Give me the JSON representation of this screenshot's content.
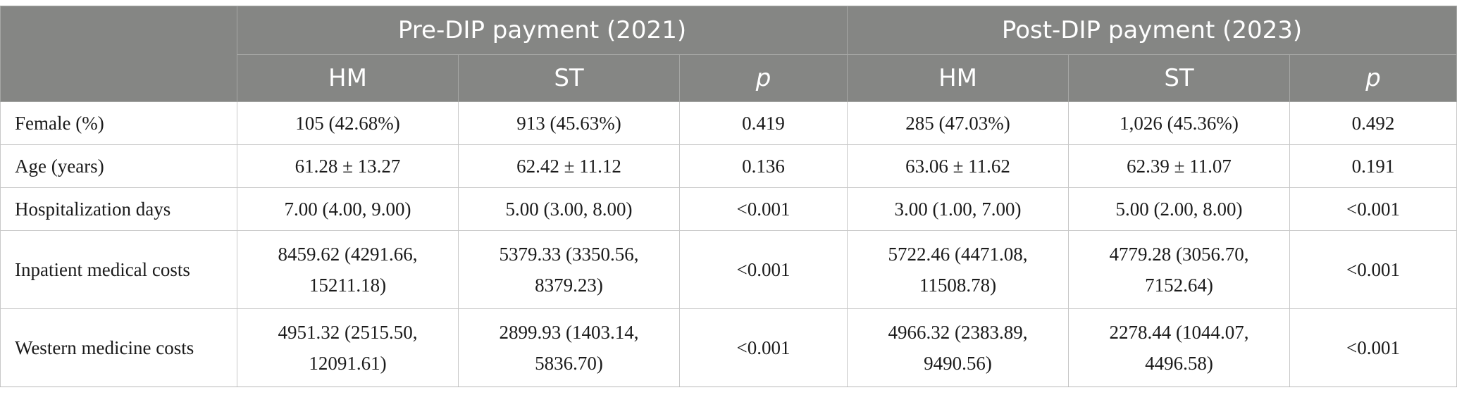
{
  "table": {
    "groups": [
      "Pre-DIP payment (2021)",
      "Post-DIP payment (2023)"
    ],
    "subheaders": [
      "HM",
      "ST",
      "p",
      "HM",
      "ST",
      "p"
    ],
    "rows": [
      {
        "label": "Female (%)",
        "cells": [
          "105 (42.68%)",
          "913 (45.63%)",
          "0.419",
          "285 (47.03%)",
          "1,026 (45.36%)",
          "0.492"
        ]
      },
      {
        "label": "Age (years)",
        "cells": [
          "61.28 ± 13.27",
          "62.42 ± 11.12",
          "0.136",
          "63.06 ± 11.62",
          "62.39 ± 11.07",
          "0.191"
        ]
      },
      {
        "label": "Hospitalization days",
        "cells": [
          "7.00 (4.00, 9.00)",
          "5.00 (3.00, 8.00)",
          "<0.001",
          "3.00 (1.00, 7.00)",
          "5.00 (2.00, 8.00)",
          "<0.001"
        ]
      },
      {
        "label": "Inpatient medical costs",
        "cells": [
          [
            "8459.62 (4291.66,",
            "15211.18)"
          ],
          [
            "5379.33 (3350.56,",
            "8379.23)"
          ],
          "<0.001",
          [
            "5722.46 (4471.08,",
            "11508.78)"
          ],
          [
            "4779.28 (3056.70,",
            "7152.64)"
          ],
          "<0.001"
        ]
      },
      {
        "label": "Western medicine costs",
        "cells": [
          [
            "4951.32 (2515.50,",
            "12091.61)"
          ],
          [
            "2899.93 (1403.14,",
            "5836.70)"
          ],
          "<0.001",
          [
            "4966.32 (2383.89,",
            "9490.56)"
          ],
          [
            "2278.44 (1044.07,",
            "4496.58)"
          ],
          "<0.001"
        ]
      }
    ]
  }
}
